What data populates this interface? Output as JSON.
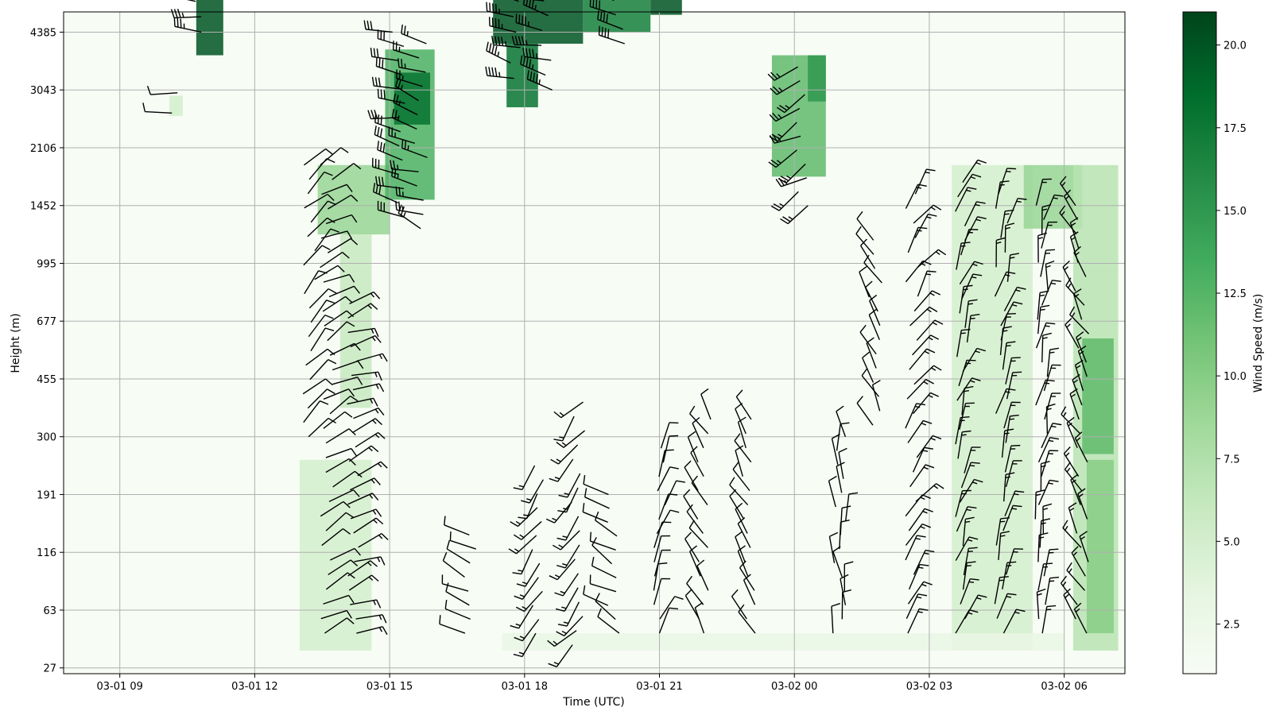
{
  "chart_data": {
    "type": "heatmap",
    "title": "",
    "xlabel": "Time (UTC)",
    "ylabel": "Height (m)",
    "x_ticks": [
      "03-01 09",
      "03-01 12",
      "03-01 15",
      "03-01 18",
      "03-01 21",
      "03-02 00",
      "03-02 03",
      "03-02 06"
    ],
    "x_tick_hours": [
      9,
      12,
      15,
      18,
      21,
      24,
      27,
      30
    ],
    "xlim_hours": [
      7.75,
      31.35
    ],
    "y_ticks": [
      27,
      63,
      116,
      191,
      300,
      455,
      677,
      995,
      1452,
      2106,
      3043,
      4385
    ],
    "y_levels_note_free": [
      27,
      63,
      116,
      191,
      300,
      455,
      677,
      995,
      1452,
      2106,
      3043,
      4385
    ],
    "grid": true,
    "colorbar": {
      "label": "Wind Speed (m/s)",
      "ticks": [
        "2.5",
        "5.0",
        "7.5",
        "10.0",
        "12.5",
        "15.0",
        "17.5",
        "20.0"
      ],
      "range": [
        1.0,
        21.0
      ],
      "colormap": "Greens",
      "colors": [
        "#f7fcf5",
        "#e5f5e0",
        "#c7e9c0",
        "#a1d99b",
        "#74c476",
        "#41ab5d",
        "#238b45",
        "#006d2c",
        "#00441b"
      ]
    },
    "speed_regions": [
      {
        "t0": 10.7,
        "t1": 11.3,
        "y0": 10.6,
        "y1": 11.9,
        "speed": 20
      },
      {
        "t0": 10.1,
        "t1": 10.4,
        "y0": 9.55,
        "y1": 9.9,
        "speed": 5
      },
      {
        "t0": 13.4,
        "t1": 15.0,
        "y0": 7.5,
        "y1": 8.7,
        "speed": 9
      },
      {
        "t0": 13.9,
        "t1": 14.6,
        "y0": 4.5,
        "y1": 7.5,
        "speed": 6
      },
      {
        "t0": 13.0,
        "t1": 14.6,
        "y0": 0.3,
        "y1": 3.6,
        "speed": 5
      },
      {
        "t0": 14.9,
        "t1": 16.0,
        "y0": 8.1,
        "y1": 10.7,
        "speed": 13
      },
      {
        "t0": 15.1,
        "t1": 15.9,
        "y0": 9.4,
        "y1": 10.3,
        "speed": 18
      },
      {
        "t0": 17.3,
        "t1": 19.3,
        "y0": 10.8,
        "y1": 11.9,
        "speed": 20
      },
      {
        "t0": 17.6,
        "t1": 18.3,
        "y0": 9.7,
        "y1": 10.8,
        "speed": 18
      },
      {
        "t0": 19.3,
        "t1": 20.8,
        "y0": 11.0,
        "y1": 11.9,
        "speed": 17
      },
      {
        "t0": 20.8,
        "t1": 21.5,
        "y0": 11.3,
        "y1": 11.9,
        "speed": 20
      },
      {
        "t0": 23.5,
        "t1": 24.7,
        "y0": 8.5,
        "y1": 10.6,
        "speed": 12
      },
      {
        "t0": 24.3,
        "t1": 24.7,
        "y0": 9.8,
        "y1": 10.6,
        "speed": 15
      },
      {
        "t0": 27.5,
        "t1": 29.3,
        "y0": 0.3,
        "y1": 8.7,
        "speed": 5
      },
      {
        "t0": 29.1,
        "t1": 30.4,
        "y0": 7.6,
        "y1": 8.7,
        "speed": 9
      },
      {
        "t0": 30.2,
        "t1": 31.2,
        "y0": 0.3,
        "y1": 8.7,
        "speed": 7
      },
      {
        "t0": 30.4,
        "t1": 31.1,
        "y0": 3.7,
        "y1": 5.7,
        "speed": 12
      },
      {
        "t0": 30.5,
        "t1": 31.1,
        "y0": 0.6,
        "y1": 3.6,
        "speed": 10
      },
      {
        "t0": 17.5,
        "t1": 30.0,
        "y0": 0.3,
        "y1": 0.6,
        "speed": 3
      }
    ],
    "barb_columns": [
      {
        "t": 13.2,
        "y0": 4,
        "y1": 8.7,
        "dir": 45,
        "spd": 10
      },
      {
        "t": 13.6,
        "y0": 0.6,
        "y1": 8.7,
        "dir": 60,
        "spd": 10
      },
      {
        "t": 14.2,
        "y0": 0.6,
        "y1": 6.3,
        "dir": 70,
        "spd": 15
      },
      {
        "t": 10.3,
        "y0": 9.6,
        "y1": 9.95,
        "dir": 270,
        "spd": 10
      },
      {
        "t": 10.8,
        "y0": 11.0,
        "y1": 11.8,
        "dir": 270,
        "spd": 35
      },
      {
        "t": 15.2,
        "y0": 7.8,
        "y1": 11.0,
        "dir": 280,
        "spd": 30
      },
      {
        "t": 15.7,
        "y0": 7.6,
        "y1": 10.8,
        "dir": 290,
        "spd": 25
      },
      {
        "t": 16.8,
        "y0": 0.6,
        "y1": 2.3,
        "dir": 300,
        "spd": 10
      },
      {
        "t": 17.8,
        "y0": 10.2,
        "y1": 11.8,
        "dir": 290,
        "spd": 45
      },
      {
        "t": 18.5,
        "y0": 10.0,
        "y1": 11.8,
        "dir": 280,
        "spd": 45
      },
      {
        "t": 20.1,
        "y0": 10.8,
        "y1": 11.8,
        "dir": 285,
        "spd": 40
      },
      {
        "t": 18.3,
        "y0": 0.6,
        "y1": 3.5,
        "dir": 215,
        "spd": 15
      },
      {
        "t": 19.2,
        "y0": 0.4,
        "y1": 4.6,
        "dir": 220,
        "spd": 15
      },
      {
        "t": 20.0,
        "y0": 0.6,
        "y1": 3.0,
        "dir": 300,
        "spd": 10
      },
      {
        "t": 21.0,
        "y0": 0.6,
        "y1": 3.8,
        "dir": 20,
        "spd": 10
      },
      {
        "t": 22.0,
        "y0": 0.6,
        "y1": 4.3,
        "dir": 330,
        "spd": 10
      },
      {
        "t": 23.0,
        "y0": 0.6,
        "y1": 4.3,
        "dir": 330,
        "spd": 10
      },
      {
        "t": 24.2,
        "y0": 8.0,
        "y1": 10.4,
        "dir": 240,
        "spd": 25
      },
      {
        "t": 25.0,
        "y0": 0.6,
        "y1": 4.0,
        "dir": 355,
        "spd": 10
      },
      {
        "t": 25.8,
        "y0": 4.2,
        "y1": 7.4,
        "dir": 330,
        "spd": 10
      },
      {
        "t": 26.6,
        "y0": 0.6,
        "y1": 8.2,
        "dir": 35,
        "spd": 15
      },
      {
        "t": 27.7,
        "y0": 0.6,
        "y1": 8.4,
        "dir": 20,
        "spd": 15
      },
      {
        "t": 28.6,
        "y0": 0.6,
        "y1": 8.2,
        "dir": 15,
        "spd": 15
      },
      {
        "t": 29.5,
        "y0": 0.6,
        "y1": 8.0,
        "dir": 10,
        "spd": 15
      },
      {
        "t": 30.4,
        "y0": 0.6,
        "y1": 8.0,
        "dir": 330,
        "spd": 15
      }
    ]
  }
}
